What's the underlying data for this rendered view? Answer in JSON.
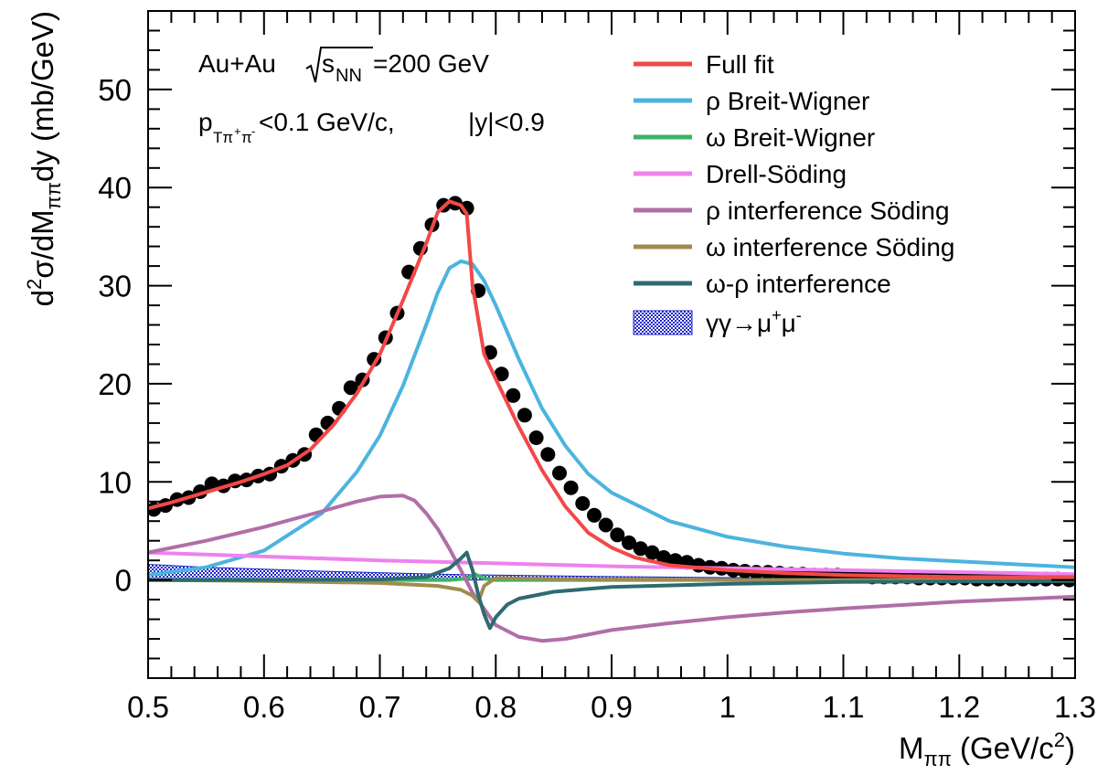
{
  "chart_data": {
    "type": "line",
    "title": "",
    "xlabel": "M_ππ (GeV/c²)",
    "ylabel": "d²σ/dM_ππdy (mb/GeV)",
    "xlim": [
      0.5,
      1.3
    ],
    "ylim": [
      -10,
      58
    ],
    "xticks": [
      "0.5",
      "0.6",
      "0.7",
      "0.8",
      "0.9",
      "1",
      "1.1",
      "1.2",
      "1.3"
    ],
    "yticks": [
      "0",
      "10",
      "20",
      "30",
      "40",
      "50"
    ],
    "grid": false,
    "legend_position": "top-right",
    "annotations": {
      "line1": {
        "prefix": "Au+Au ",
        "sqrt_s": "s",
        "sqrt_sub": "NN",
        "suffix": "=200 GeV"
      },
      "line2": {
        "p": "p",
        "p_sub": "Tπ",
        "p_sub_sup": "+",
        "p_sub2": "π",
        "p_sub_sup2": "-",
        "suffix": "<0.1 GeV/c,",
        "y_part": "|y|<0.9"
      }
    },
    "data_points": {
      "name": "",
      "x": [
        0.505,
        0.515,
        0.525,
        0.535,
        0.545,
        0.555,
        0.565,
        0.575,
        0.585,
        0.595,
        0.605,
        0.615,
        0.625,
        0.635,
        0.645,
        0.655,
        0.665,
        0.675,
        0.685,
        0.695,
        0.705,
        0.715,
        0.725,
        0.735,
        0.745,
        0.755,
        0.765,
        0.775,
        0.785,
        0.795,
        0.805,
        0.815,
        0.825,
        0.835,
        0.845,
        0.855,
        0.865,
        0.875,
        0.885,
        0.895,
        0.905,
        0.915,
        0.925,
        0.935,
        0.945,
        0.955,
        0.965,
        0.975,
        0.985,
        0.995,
        1.005,
        1.015,
        1.025,
        1.035,
        1.045,
        1.055,
        1.065,
        1.075,
        1.085,
        1.095,
        1.105,
        1.115,
        1.125,
        1.135,
        1.145,
        1.155,
        1.165,
        1.175,
        1.185,
        1.195,
        1.205,
        1.215,
        1.225,
        1.235,
        1.245,
        1.255,
        1.265,
        1.275,
        1.285,
        1.295
      ],
      "y": [
        7.2,
        7.6,
        8.2,
        8.4,
        9.0,
        9.8,
        9.6,
        10.1,
        10.2,
        10.6,
        10.8,
        11.6,
        12.2,
        12.8,
        14.8,
        16.0,
        17.5,
        19.6,
        20.4,
        22.5,
        24.7,
        27.2,
        31.4,
        33.8,
        36.2,
        38.2,
        38.4,
        37.9,
        29.5,
        23.2,
        21.0,
        18.8,
        16.8,
        14.5,
        12.8,
        10.9,
        9.4,
        7.8,
        6.6,
        5.6,
        4.6,
        3.8,
        3.2,
        2.8,
        2.3,
        2.0,
        1.8,
        1.5,
        1.3,
        1.2,
        1.0,
        0.9,
        0.8,
        0.8,
        0.7,
        0.6,
        0.6,
        0.5,
        0.5,
        0.5,
        0.4,
        0.4,
        0.3,
        0.3,
        0.3,
        0.3,
        0.2,
        0.2,
        0.2,
        0.2,
        0.2,
        0.1,
        0.1,
        0.1,
        0.1,
        0.1,
        0.1,
        0.1,
        0.1,
        0.0
      ]
    },
    "series": [
      {
        "name": "Full fit",
        "color": "#f24848",
        "x": [
          0.5,
          0.52,
          0.54,
          0.56,
          0.58,
          0.6,
          0.62,
          0.64,
          0.66,
          0.68,
          0.7,
          0.72,
          0.74,
          0.75,
          0.76,
          0.77,
          0.775,
          0.78,
          0.79,
          0.8,
          0.82,
          0.84,
          0.86,
          0.88,
          0.9,
          0.92,
          0.95,
          1.0,
          1.05,
          1.1,
          1.15,
          1.2,
          1.25,
          1.3
        ],
        "y": [
          7.3,
          7.9,
          8.6,
          9.3,
          10.0,
          10.8,
          11.7,
          13.3,
          15.8,
          19.0,
          23.0,
          28.5,
          34.3,
          37.5,
          38.6,
          38.2,
          37.3,
          30.0,
          23.0,
          20.5,
          15.6,
          11.2,
          7.5,
          4.8,
          3.3,
          2.3,
          1.5,
          1.0,
          0.7,
          0.5,
          0.4,
          0.3,
          0.3,
          0.3
        ]
      },
      {
        "name": "ρ Breit-Wigner",
        "color": "#4cb4de",
        "x": [
          0.5,
          0.55,
          0.6,
          0.65,
          0.68,
          0.7,
          0.72,
          0.74,
          0.75,
          0.76,
          0.77,
          0.78,
          0.79,
          0.8,
          0.82,
          0.84,
          0.86,
          0.88,
          0.9,
          0.95,
          1.0,
          1.05,
          1.1,
          1.15,
          1.2,
          1.3
        ],
        "y": [
          0.5,
          1.3,
          3.0,
          6.8,
          11.0,
          14.7,
          19.8,
          26.0,
          29.3,
          31.8,
          32.5,
          32.2,
          30.5,
          28.0,
          22.5,
          17.5,
          13.7,
          10.8,
          8.9,
          6.0,
          4.4,
          3.4,
          2.7,
          2.2,
          1.9,
          1.3
        ]
      },
      {
        "name": "ω Breit-Wigner",
        "color": "#3cb464",
        "x": [
          0.5,
          0.76,
          0.775,
          0.782,
          0.79,
          0.8,
          1.3
        ],
        "y": [
          0,
          0,
          0.15,
          0.6,
          0.15,
          0,
          0
        ]
      },
      {
        "name": "Drell-Söding",
        "color": "#ee82ee",
        "x": [
          0.5,
          0.7,
          0.9,
          1.1,
          1.3
        ],
        "y": [
          2.8,
          2.0,
          1.4,
          1.0,
          0.6
        ]
      },
      {
        "name": "ρ interference Söding",
        "color": "#b06ea8",
        "x": [
          0.5,
          0.55,
          0.6,
          0.65,
          0.68,
          0.7,
          0.72,
          0.73,
          0.74,
          0.75,
          0.76,
          0.77,
          0.78,
          0.8,
          0.82,
          0.84,
          0.86,
          0.9,
          0.95,
          1.0,
          1.05,
          1.1,
          1.2,
          1.3
        ],
        "y": [
          2.8,
          4.0,
          5.4,
          7.0,
          8.0,
          8.5,
          8.6,
          8.1,
          6.8,
          5.2,
          3.2,
          1.0,
          -1.3,
          -4.6,
          -5.8,
          -6.2,
          -6.0,
          -5.1,
          -4.4,
          -3.8,
          -3.3,
          -2.9,
          -2.2,
          -1.7
        ]
      },
      {
        "name": "ω interference Söding",
        "color": "#a08c50",
        "x": [
          0.5,
          0.6,
          0.7,
          0.75,
          0.77,
          0.78,
          0.785,
          0.79,
          0.8,
          0.85,
          1.0,
          1.3
        ],
        "y": [
          0,
          -0.1,
          -0.3,
          -0.6,
          -1.0,
          -1.6,
          -2.2,
          -0.6,
          0.2,
          0.1,
          0,
          0
        ]
      },
      {
        "name": "ω-ρ interference",
        "color": "#2e6b70",
        "x": [
          0.5,
          0.6,
          0.7,
          0.74,
          0.76,
          0.77,
          0.775,
          0.78,
          0.785,
          0.79,
          0.795,
          0.8,
          0.81,
          0.82,
          0.85,
          0.9,
          1.0,
          1.1,
          1.3
        ],
        "y": [
          0,
          0,
          0.05,
          0.3,
          1.2,
          2.2,
          2.8,
          1.0,
          -1.5,
          -3.5,
          -4.9,
          -3.8,
          -2.5,
          -1.9,
          -1.2,
          -0.7,
          -0.4,
          -0.2,
          -0.1
        ]
      }
    ],
    "band": {
      "name": "γγ→μ⁺μ⁻",
      "label_parts": {
        "base": "γγ→μ",
        "sup1": "+",
        "mid": "μ",
        "sup2": "-"
      },
      "color": "#1e28c8",
      "x": [
        0.5,
        0.55,
        0.6,
        0.65,
        0.7,
        0.75,
        0.8,
        0.9,
        1.0,
        1.1,
        1.2,
        1.3
      ],
      "lower": [
        0,
        0,
        0,
        0,
        0,
        0,
        0,
        0,
        0,
        0,
        0,
        0
      ],
      "upper": [
        1.6,
        1.3,
        1.1,
        0.9,
        0.75,
        0.6,
        0.5,
        0.35,
        0.25,
        0.18,
        0.12,
        0.08
      ]
    }
  }
}
